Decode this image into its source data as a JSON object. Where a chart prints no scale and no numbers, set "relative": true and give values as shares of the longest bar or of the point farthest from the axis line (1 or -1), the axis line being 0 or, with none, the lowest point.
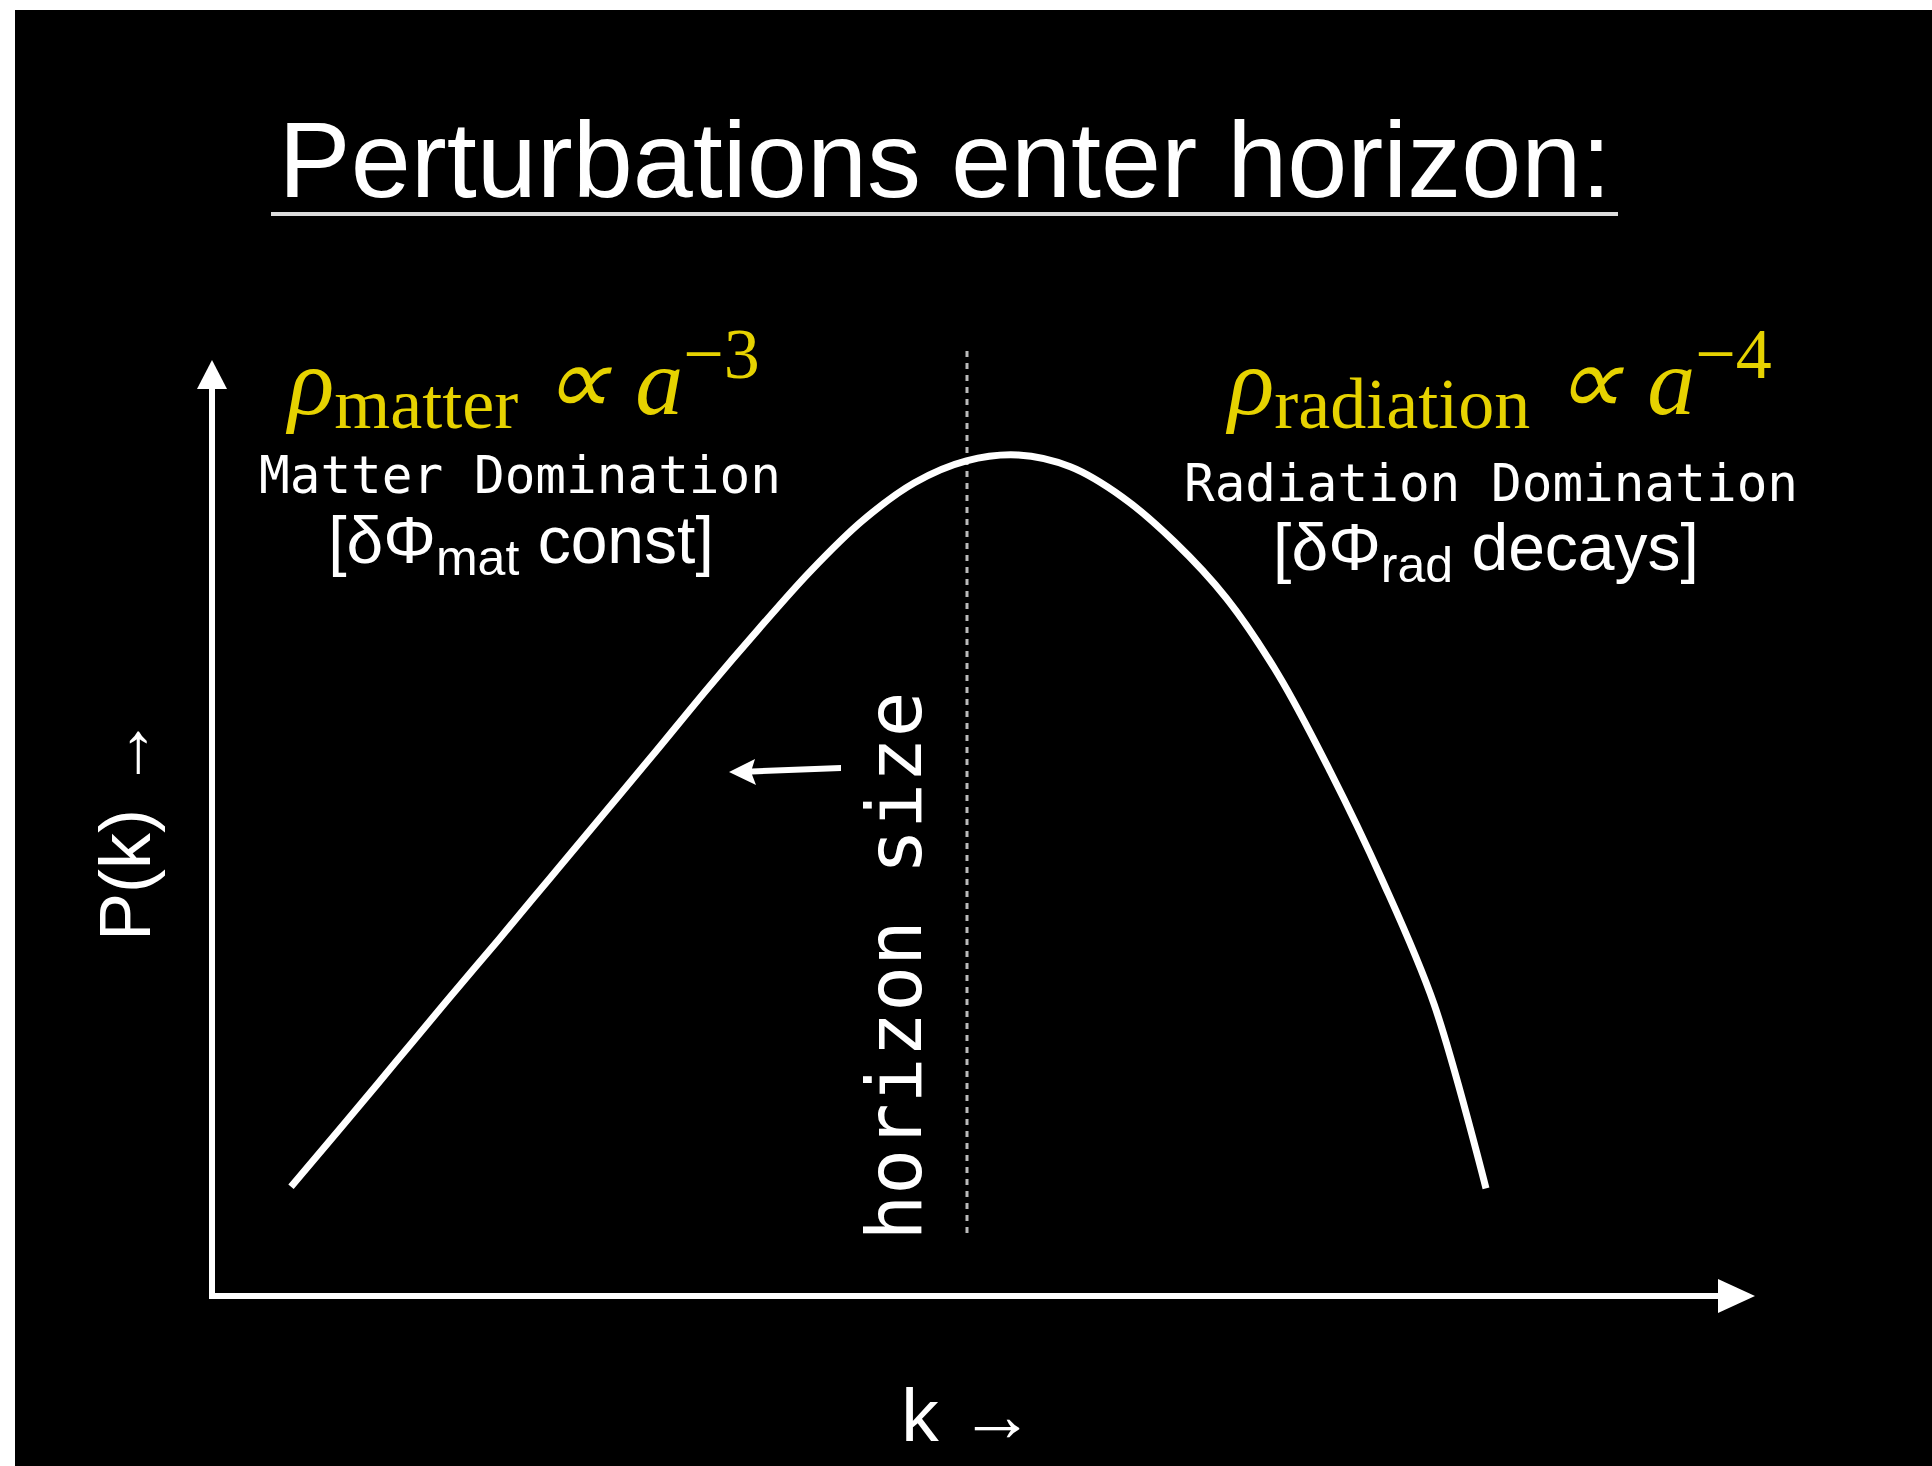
{
  "chart_data": {
    "type": "line",
    "title": "Perturbations enter horizon:",
    "xlabel": "k →",
    "ylabel": "P(k) →",
    "relative": true,
    "categories": [
      null,
      null,
      null,
      null,
      null,
      null,
      null,
      null,
      null,
      null,
      null,
      null,
      null,
      null,
      null,
      null,
      null,
      null,
      null,
      null,
      null,
      null,
      null,
      null
    ],
    "series": [
      {
        "color": "#ffffff",
        "values": [
          0.13,
          0.203,
          0.277,
          0.351,
          0.424,
          0.498,
          0.572,
          0.646,
          0.721,
          0.793,
          0.862,
          0.922,
          0.967,
          0.993,
          1,
          0.986,
          0.95,
          0.897,
          0.83,
          0.739,
          0.624,
          0.495,
          0.347,
          0.128
        ]
      }
    ],
    "annotations": [
      "ρ$_{matter}$ ∝ a$^{−3}$",
      "Matter Domination",
      "[δΦ$_{mat}$ const]",
      "ρ$_{radiation}$ ∝ a$^{−4}$",
      "Radiation Domination",
      "[δΦ$_{rad}$ decays]",
      "horizon size"
    ]
  }
}
